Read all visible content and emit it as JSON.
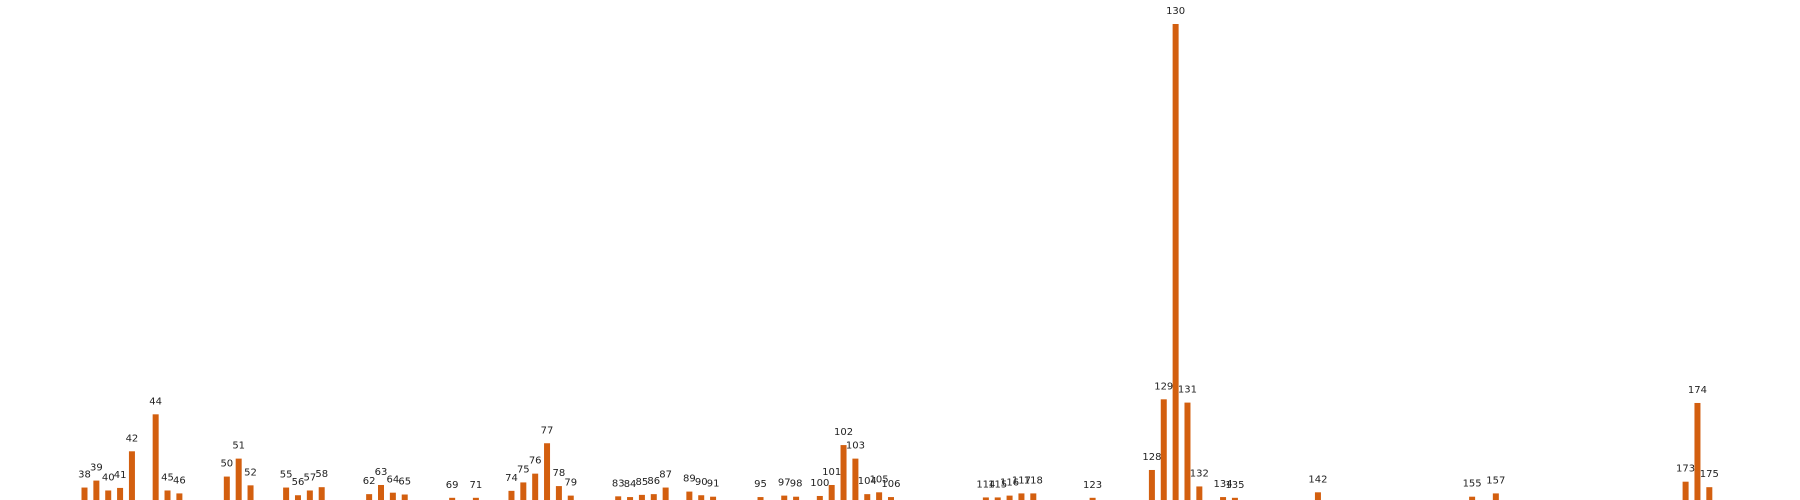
{
  "colors": {
    "bar": "#d35f0f",
    "background": "#ffffff",
    "label": "#222222"
  },
  "chart_data": {
    "type": "bar",
    "title": "",
    "xlabel": "",
    "ylabel": "",
    "axes_visible": false,
    "grid": false,
    "ylim": [
      0,
      130
    ],
    "data_labels": "bar index shown above each bar",
    "categories": [
      38,
      39,
      40,
      41,
      42,
      44,
      45,
      46,
      50,
      51,
      52,
      55,
      56,
      57,
      58,
      62,
      63,
      64,
      65,
      69,
      71,
      74,
      75,
      76,
      77,
      78,
      79,
      83,
      84,
      85,
      86,
      87,
      89,
      90,
      91,
      95,
      97,
      98,
      100,
      101,
      102,
      103,
      104,
      105,
      106,
      114,
      115,
      116,
      117,
      118,
      123,
      128,
      129,
      130,
      131,
      132,
      134,
      135,
      142,
      155,
      157,
      173,
      174,
      175
    ],
    "values": [
      3.4,
      5.3,
      2.6,
      3.3,
      13.3,
      23.4,
      2.6,
      1.8,
      6.4,
      11.3,
      4.0,
      3.4,
      1.3,
      2.6,
      3.5,
      1.6,
      4.1,
      2.0,
      1.5,
      0.6,
      0.6,
      2.5,
      4.8,
      7.2,
      15.5,
      3.8,
      1.2,
      1.0,
      0.8,
      1.4,
      1.6,
      3.4,
      2.3,
      1.3,
      0.9,
      0.8,
      1.2,
      0.9,
      1.1,
      4.1,
      15.0,
      11.3,
      1.6,
      2.1,
      0.8,
      0.7,
      0.7,
      1.2,
      1.8,
      1.8,
      0.6,
      8.2,
      27.5,
      130.0,
      26.6,
      3.7,
      0.8,
      0.6,
      2.1,
      0.9,
      1.8,
      5.0,
      26.5,
      3.5
    ]
  }
}
